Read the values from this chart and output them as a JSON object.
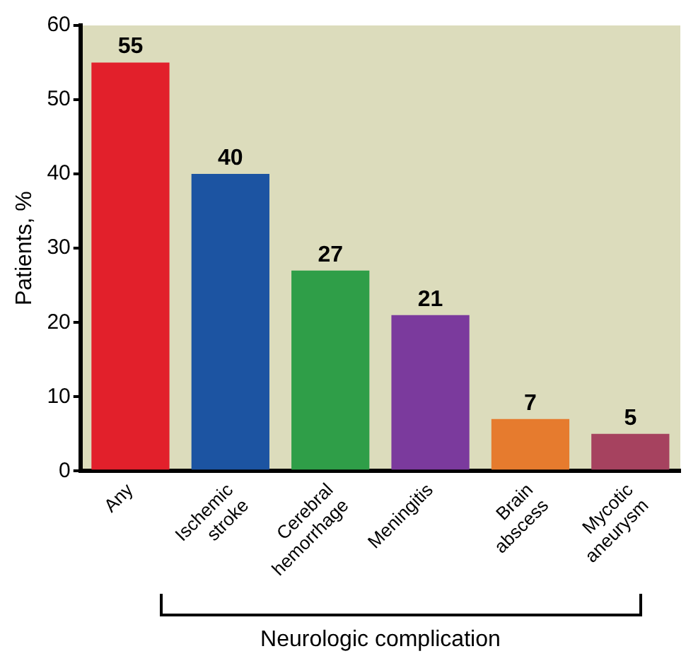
{
  "chart_data": {
    "type": "bar",
    "xlabel": "Neurologic complication",
    "ylabel": "Patients, %",
    "categories": [
      "Any",
      "Ischemic stroke",
      "Cerebral hemorrhage",
      "Meningitis",
      "Brain abscess",
      "Mycotic aneurysm"
    ],
    "values": [
      55,
      40,
      27,
      21,
      7,
      5
    ],
    "colors": [
      "#e2202b",
      "#1c54a2",
      "#2f9e48",
      "#7b3a9d",
      "#e67b2e",
      "#a6425f"
    ],
    "ylim": [
      0,
      60
    ],
    "yticks": [
      0,
      10,
      20,
      30,
      40,
      50,
      60
    ],
    "grid": false,
    "legend": false,
    "data_labels": true
  }
}
